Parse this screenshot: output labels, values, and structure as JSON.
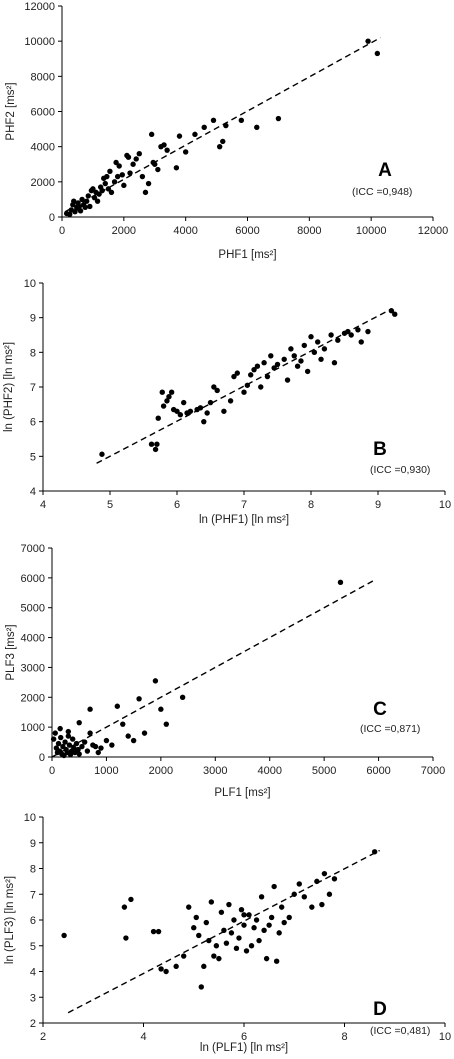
{
  "chart_data": [
    {
      "type": "scatter",
      "panel_label": "A",
      "annotation": "(ICC =0,948)",
      "xlabel": "PHF1 [ms²]",
      "ylabel": "PHF2 [ms²]",
      "xlim": [
        0,
        12000
      ],
      "ylim": [
        0,
        12000
      ],
      "xticks": [
        0,
        2000,
        4000,
        6000,
        8000,
        10000,
        12000
      ],
      "yticks": [
        0,
        2000,
        4000,
        6000,
        8000,
        10000,
        12000
      ],
      "trend_line": [
        [
          100,
          300
        ],
        [
          10300,
          10200
        ]
      ],
      "points": [
        [
          150,
          200
        ],
        [
          250,
          150
        ],
        [
          300,
          400
        ],
        [
          350,
          700
        ],
        [
          380,
          900
        ],
        [
          420,
          300
        ],
        [
          480,
          500
        ],
        [
          520,
          800
        ],
        [
          560,
          600
        ],
        [
          600,
          350
        ],
        [
          650,
          1000
        ],
        [
          700,
          700
        ],
        [
          750,
          550
        ],
        [
          800,
          900
        ],
        [
          850,
          1200
        ],
        [
          900,
          600
        ],
        [
          950,
          1500
        ],
        [
          1000,
          1600
        ],
        [
          1050,
          1100
        ],
        [
          1100,
          1400
        ],
        [
          1150,
          900
        ],
        [
          1200,
          1300
        ],
        [
          1250,
          1700
        ],
        [
          1300,
          1500
        ],
        [
          1350,
          2200
        ],
        [
          1400,
          1900
        ],
        [
          1450,
          2300
        ],
        [
          1500,
          1600
        ],
        [
          1550,
          2600
        ],
        [
          1600,
          1400
        ],
        [
          1700,
          2000
        ],
        [
          1750,
          3100
        ],
        [
          1800,
          2300
        ],
        [
          1850,
          2900
        ],
        [
          1950,
          2400
        ],
        [
          2000,
          1800
        ],
        [
          2100,
          3500
        ],
        [
          2150,
          3400
        ],
        [
          2200,
          2500
        ],
        [
          2300,
          3000
        ],
        [
          2400,
          3300
        ],
        [
          2500,
          3600
        ],
        [
          2600,
          2300
        ],
        [
          2700,
          1400
        ],
        [
          2800,
          1900
        ],
        [
          2900,
          4700
        ],
        [
          2950,
          3100
        ],
        [
          3000,
          3000
        ],
        [
          3100,
          2700
        ],
        [
          3200,
          4000
        ],
        [
          3300,
          4100
        ],
        [
          3400,
          3800
        ],
        [
          3700,
          2800
        ],
        [
          3800,
          4600
        ],
        [
          4000,
          3700
        ],
        [
          4300,
          4700
        ],
        [
          4600,
          5100
        ],
        [
          4900,
          5500
        ],
        [
          5100,
          4000
        ],
        [
          5200,
          4300
        ],
        [
          5300,
          5200
        ],
        [
          5800,
          5500
        ],
        [
          6300,
          5100
        ],
        [
          7000,
          5600
        ],
        [
          9900,
          10000
        ],
        [
          10200,
          9300
        ]
      ]
    },
    {
      "type": "scatter",
      "panel_label": "B",
      "annotation": "(ICC =0,930)",
      "xlabel": "ln (PHF1) [ln ms²]",
      "ylabel": "ln (PHF2) [ln ms²]",
      "xlim": [
        4,
        10
      ],
      "ylim": [
        4,
        10
      ],
      "xticks": [
        4,
        5,
        6,
        7,
        8,
        9,
        10
      ],
      "yticks": [
        4,
        5,
        6,
        7,
        8,
        9,
        10
      ],
      "trend_line": [
        [
          4.8,
          4.8
        ],
        [
          9.2,
          9.25
        ]
      ],
      "points": [
        [
          4.88,
          5.06
        ],
        [
          5.62,
          5.35
        ],
        [
          5.68,
          5.2
        ],
        [
          5.7,
          5.35
        ],
        [
          5.72,
          6.1
        ],
        [
          5.78,
          6.85
        ],
        [
          5.8,
          6.45
        ],
        [
          5.85,
          6.6
        ],
        [
          5.88,
          6.72
        ],
        [
          5.92,
          6.85
        ],
        [
          5.95,
          6.35
        ],
        [
          6.0,
          6.3
        ],
        [
          6.05,
          6.2
        ],
        [
          6.1,
          6.55
        ],
        [
          6.15,
          6.25
        ],
        [
          6.2,
          6.3
        ],
        [
          6.3,
          6.35
        ],
        [
          6.35,
          6.4
        ],
        [
          6.4,
          6.0
        ],
        [
          6.45,
          6.25
        ],
        [
          6.5,
          6.55
        ],
        [
          6.55,
          7.0
        ],
        [
          6.6,
          6.9
        ],
        [
          6.7,
          6.3
        ],
        [
          6.8,
          6.6
        ],
        [
          6.85,
          7.3
        ],
        [
          6.9,
          7.4
        ],
        [
          7.0,
          6.85
        ],
        [
          7.05,
          7.05
        ],
        [
          7.1,
          7.35
        ],
        [
          7.15,
          7.5
        ],
        [
          7.2,
          7.6
        ],
        [
          7.25,
          7.0
        ],
        [
          7.3,
          7.7
        ],
        [
          7.35,
          7.3
        ],
        [
          7.4,
          7.9
        ],
        [
          7.45,
          7.55
        ],
        [
          7.5,
          7.65
        ],
        [
          7.6,
          7.8
        ],
        [
          7.65,
          7.2
        ],
        [
          7.7,
          8.1
        ],
        [
          7.75,
          7.9
        ],
        [
          7.8,
          7.6
        ],
        [
          7.85,
          7.75
        ],
        [
          7.9,
          8.2
        ],
        [
          7.95,
          7.45
        ],
        [
          8.0,
          8.45
        ],
        [
          8.05,
          8.0
        ],
        [
          8.1,
          8.3
        ],
        [
          8.15,
          7.8
        ],
        [
          8.2,
          8.1
        ],
        [
          8.3,
          8.5
        ],
        [
          8.35,
          7.7
        ],
        [
          8.4,
          8.35
        ],
        [
          8.5,
          8.55
        ],
        [
          8.55,
          8.6
        ],
        [
          8.6,
          8.5
        ],
        [
          8.7,
          8.65
        ],
        [
          8.75,
          8.3
        ],
        [
          8.85,
          8.6
        ],
        [
          9.2,
          9.2
        ],
        [
          9.25,
          9.1
        ]
      ]
    },
    {
      "type": "scatter",
      "panel_label": "C",
      "annotation": "(ICC =0,871)",
      "xlabel": "PLF1 [ms²]",
      "ylabel": "PLF3 [ms²]",
      "xlim": [
        0,
        7000
      ],
      "ylim": [
        0,
        7000
      ],
      "xticks": [
        0,
        1000,
        2000,
        3000,
        4000,
        5000,
        6000,
        7000
      ],
      "yticks": [
        0,
        1000,
        2000,
        3000,
        4000,
        5000,
        6000,
        7000
      ],
      "trend_line": [
        [
          0,
          0
        ],
        [
          5900,
          5900
        ]
      ],
      "points": [
        [
          30,
          600
        ],
        [
          60,
          800
        ],
        [
          80,
          300
        ],
        [
          100,
          150
        ],
        [
          120,
          450
        ],
        [
          140,
          200
        ],
        [
          160,
          650
        ],
        [
          180,
          100
        ],
        [
          200,
          350
        ],
        [
          220,
          50
        ],
        [
          240,
          500
        ],
        [
          260,
          250
        ],
        [
          280,
          150
        ],
        [
          300,
          700
        ],
        [
          320,
          400
        ],
        [
          340,
          80
        ],
        [
          360,
          200
        ],
        [
          380,
          600
        ],
        [
          400,
          300
        ],
        [
          420,
          150
        ],
        [
          450,
          450
        ],
        [
          480,
          250
        ],
        [
          500,
          100
        ],
        [
          550,
          350
        ],
        [
          600,
          500
        ],
        [
          650,
          200
        ],
        [
          700,
          800
        ],
        [
          750,
          400
        ],
        [
          800,
          350
        ],
        [
          850,
          150
        ],
        [
          900,
          300
        ],
        [
          1000,
          550
        ],
        [
          1100,
          400
        ],
        [
          1200,
          1700
        ],
        [
          1300,
          1100
        ],
        [
          1400,
          700
        ],
        [
          1500,
          550
        ],
        [
          1600,
          1950
        ],
        [
          1700,
          800
        ],
        [
          1900,
          2550
        ],
        [
          2000,
          1600
        ],
        [
          2100,
          1100
        ],
        [
          2400,
          2000
        ],
        [
          700,
          1600
        ],
        [
          500,
          1150
        ],
        [
          300,
          850
        ],
        [
          150,
          950
        ],
        [
          5300,
          5850
        ]
      ]
    },
    {
      "type": "scatter",
      "panel_label": "D",
      "annotation": "(ICC =0,481)",
      "xlabel": "ln (PLF1) [ln ms²]",
      "ylabel": "ln (PLF3) [ln ms²]",
      "xlim": [
        2,
        10
      ],
      "ylim": [
        2,
        10
      ],
      "xticks": [
        2,
        4,
        6,
        8,
        10
      ],
      "yticks": [
        2,
        3,
        4,
        5,
        6,
        7,
        8,
        9,
        10
      ],
      "trend_line": [
        [
          2.5,
          2.4
        ],
        [
          8.7,
          8.7
        ]
      ],
      "points": [
        [
          2.42,
          5.4
        ],
        [
          3.62,
          6.5
        ],
        [
          3.65,
          5.3
        ],
        [
          3.75,
          6.8
        ],
        [
          4.2,
          5.55
        ],
        [
          4.3,
          5.55
        ],
        [
          4.35,
          4.1
        ],
        [
          4.45,
          4.0
        ],
        [
          4.65,
          4.2
        ],
        [
          4.8,
          4.6
        ],
        [
          4.9,
          6.5
        ],
        [
          5.0,
          5.7
        ],
        [
          5.05,
          6.1
        ],
        [
          5.1,
          5.4
        ],
        [
          5.15,
          3.4
        ],
        [
          5.2,
          4.2
        ],
        [
          5.25,
          5.9
        ],
        [
          5.3,
          5.2
        ],
        [
          5.35,
          6.7
        ],
        [
          5.4,
          4.6
        ],
        [
          5.45,
          5.0
        ],
        [
          5.5,
          4.5
        ],
        [
          5.55,
          6.3
        ],
        [
          5.6,
          5.6
        ],
        [
          5.65,
          5.1
        ],
        [
          5.7,
          6.6
        ],
        [
          5.75,
          5.5
        ],
        [
          5.8,
          6.0
        ],
        [
          5.85,
          4.9
        ],
        [
          5.9,
          5.3
        ],
        [
          5.95,
          6.4
        ],
        [
          6.0,
          5.8
        ],
        [
          6.05,
          4.8
        ],
        [
          6.1,
          6.2
        ],
        [
          6.15,
          5.0
        ],
        [
          6.2,
          5.7
        ],
        [
          6.25,
          6.0
        ],
        [
          6.3,
          5.2
        ],
        [
          6.35,
          6.9
        ],
        [
          6.4,
          5.6
        ],
        [
          6.45,
          4.5
        ],
        [
          6.5,
          5.8
        ],
        [
          6.55,
          6.1
        ],
        [
          6.6,
          7.3
        ],
        [
          6.65,
          4.4
        ],
        [
          6.7,
          5.5
        ],
        [
          6.75,
          6.5
        ],
        [
          6.8,
          5.9
        ],
        [
          6.9,
          6.1
        ],
        [
          7.0,
          7.0
        ],
        [
          7.1,
          7.4
        ],
        [
          7.2,
          6.9
        ],
        [
          7.35,
          6.5
        ],
        [
          7.45,
          7.5
        ],
        [
          7.55,
          6.6
        ],
        [
          7.6,
          7.8
        ],
        [
          7.7,
          7.0
        ],
        [
          7.8,
          7.6
        ],
        [
          8.6,
          8.65
        ],
        [
          6.0,
          6.2
        ]
      ]
    }
  ]
}
